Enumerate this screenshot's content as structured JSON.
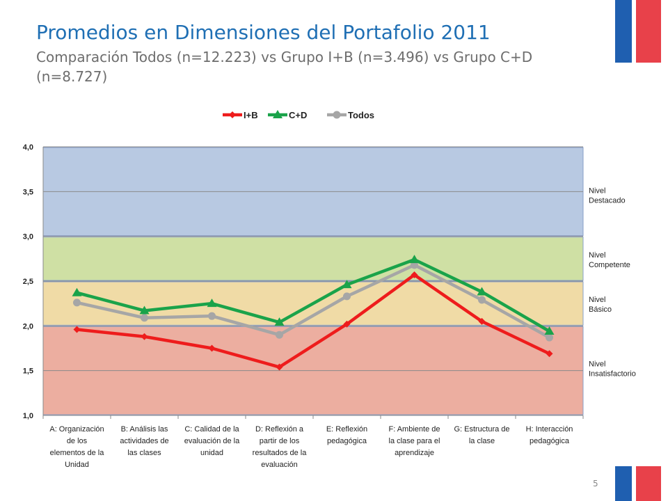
{
  "slide": {
    "title": "Promedios en Dimensiones del Portafolio 2011",
    "subtitle": "Comparación Todos (n=12.223) vs Grupo I+B (n=3.496) vs Grupo C+D (n=8.727)",
    "page_number": "5"
  },
  "colors": {
    "flag_blue": "#1f5fb0",
    "flag_red": "#e8414a"
  },
  "chart_data": {
    "type": "line",
    "title": "",
    "xlabel": "",
    "ylabel": "",
    "ylim": [
      1.0,
      4.0
    ],
    "yticks": [
      "1,0",
      "1,5",
      "2,0",
      "2,5",
      "3,0",
      "3,5",
      "4,0"
    ],
    "grid": true,
    "legend_position": "top",
    "categories": [
      [
        "A: Organización",
        "de los",
        "elementos de la",
        "Unidad"
      ],
      [
        "B: Análisis las",
        "actividades de",
        "las clases"
      ],
      [
        "C: Calidad de la",
        "evaluación de la",
        "unidad"
      ],
      [
        "D: Reflexión a",
        "partir de los",
        "resultados de la",
        "evaluación"
      ],
      [
        "E: Reflexión",
        "pedagógica"
      ],
      [
        "F: Ambiente de",
        "la clase para el",
        "aprendizaje"
      ],
      [
        "G: Estructura de",
        "la clase"
      ],
      [
        "H: Interacción",
        "pedagógica"
      ]
    ],
    "series": [
      {
        "name": "I+B",
        "color": "#ee1c1c",
        "marker": "diamond",
        "values": [
          1.96,
          1.88,
          1.75,
          1.54,
          2.02,
          2.57,
          2.05,
          1.69
        ]
      },
      {
        "name": "C+D",
        "color": "#1aa34a",
        "marker": "triangle",
        "values": [
          2.37,
          2.17,
          2.25,
          2.04,
          2.46,
          2.74,
          2.38,
          1.94
        ]
      },
      {
        "name": "Todos",
        "color": "#a6a6a6",
        "marker": "circle",
        "values": [
          2.26,
          2.09,
          2.11,
          1.9,
          2.33,
          2.68,
          2.29,
          1.87
        ]
      }
    ],
    "bands": [
      {
        "label": [
          "Nivel",
          "Destacado"
        ],
        "from": 3.0,
        "to": 4.0,
        "color": "#b8c9e2"
      },
      {
        "label": [
          "Nivel",
          "Competente"
        ],
        "from": 2.5,
        "to": 3.0,
        "color": "#cfe0a4"
      },
      {
        "label": [
          "Nivel",
          "Básico"
        ],
        "from": 2.0,
        "to": 2.5,
        "color": "#f0dba6"
      },
      {
        "label": [
          "Nivel",
          "Insatisfactorio"
        ],
        "from": 1.0,
        "to": 2.0,
        "color": "#ecaea0"
      }
    ]
  }
}
